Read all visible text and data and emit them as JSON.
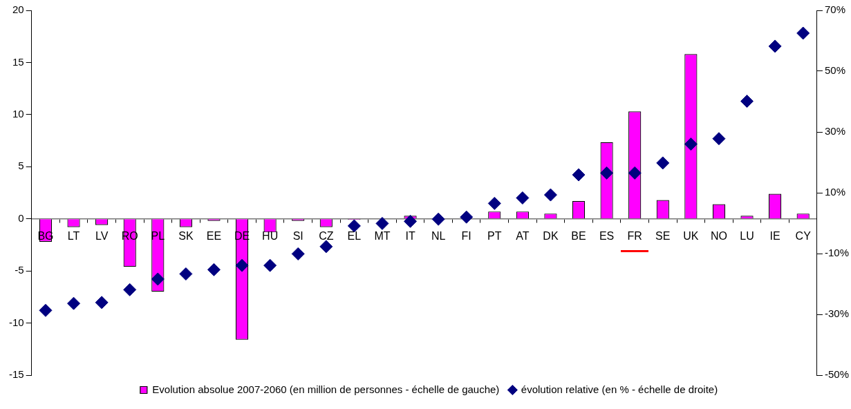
{
  "chart_data": {
    "type": "bar",
    "categories": [
      "BG",
      "LT",
      "LV",
      "RO",
      "PL",
      "SK",
      "EE",
      "DE",
      "HU",
      "SI",
      "CZ",
      "EL",
      "MT",
      "IT",
      "NL",
      "FI",
      "PT",
      "AT",
      "DK",
      "BE",
      "ES",
      "FR",
      "SE",
      "UK",
      "NO",
      "LU",
      "IE",
      "CY"
    ],
    "series": [
      {
        "name": "Evolution absolue 2007-2060 (en million de personnes - échelle de gauche)",
        "color": "#ff00ff",
        "values": [
          -2.2,
          -0.8,
          -0.6,
          -4.6,
          -7.0,
          -0.8,
          -0.2,
          -11.6,
          -1.3,
          -0.2,
          -0.8,
          -0.1,
          0,
          0.3,
          0,
          0,
          0.7,
          0.7,
          0.5,
          1.7,
          7.35,
          10.3,
          1.8,
          15.8,
          1.4,
          0.3,
          2.4,
          0.5
        ]
      },
      {
        "name": "évolution relative (en % - échelle de droite)",
        "type": "scatter",
        "axis": "y2",
        "marker": "diamond",
        "color": "#000080",
        "values": [
          -28.7,
          -26.4,
          -26.1,
          -21.9,
          -18.4,
          -16.7,
          -15.3,
          -13.9,
          -13.9,
          -10.1,
          -7.7,
          -0.9,
          -0.1,
          0.6,
          1.3,
          2.0,
          6.5,
          8.3,
          9.3,
          15.9,
          16.5,
          16.5,
          19.8,
          26.0,
          27.8,
          40.1,
          58.2,
          62.5
        ]
      }
    ],
    "ylim": [
      -15,
      20
    ],
    "yticks": [
      -15,
      -10,
      -5,
      0,
      5,
      10,
      15,
      20
    ],
    "y2lim": [
      -50,
      70
    ],
    "y2ticks": [
      {
        "value": -50,
        "label": "-50%"
      },
      {
        "value": -30,
        "label": "-30%"
      },
      {
        "value": -10,
        "label": "-10%"
      },
      {
        "value": 10,
        "label": "10%"
      },
      {
        "value": 30,
        "label": "30%"
      },
      {
        "value": 50,
        "label": "50%"
      },
      {
        "value": 70,
        "label": "70%"
      }
    ],
    "grid": false,
    "legend": "bottom"
  }
}
